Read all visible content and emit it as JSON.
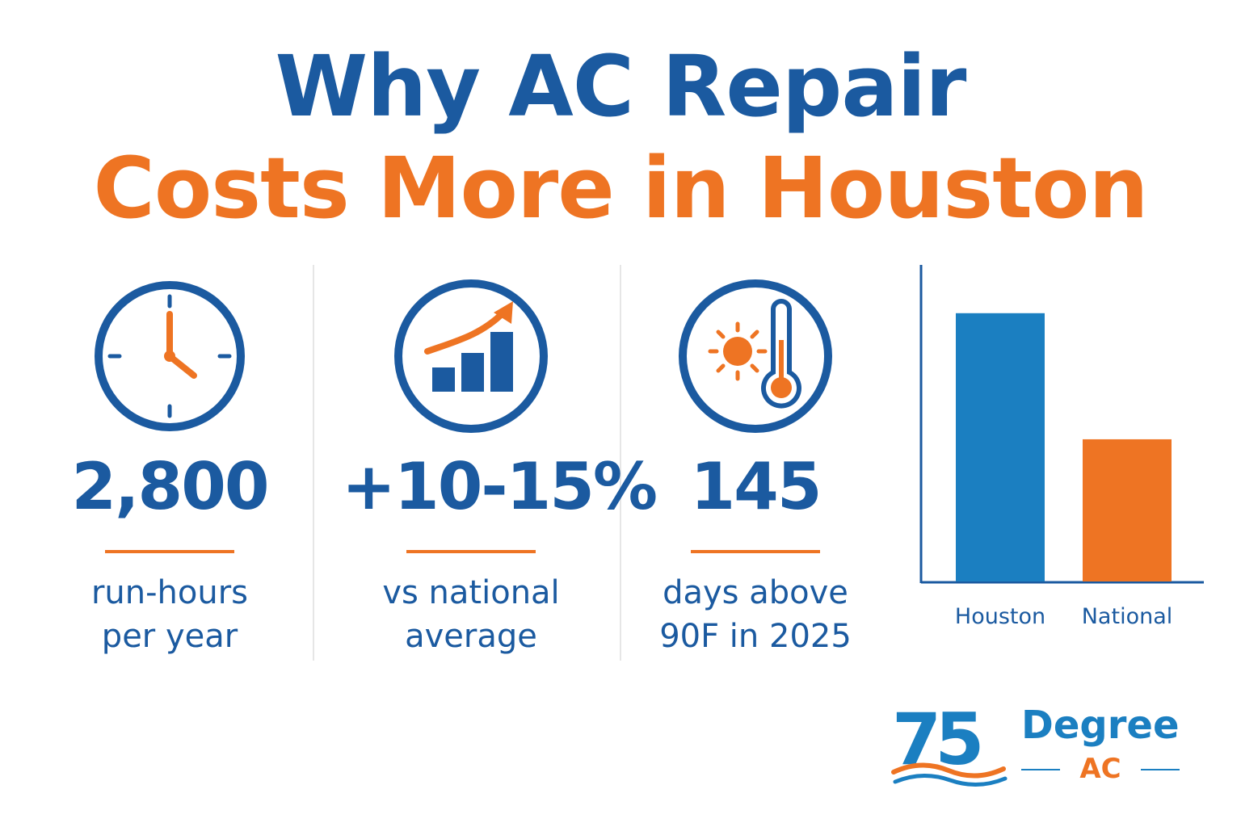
{
  "title": {
    "line1": "Why AC Repair",
    "line2": "Costs More in Houston"
  },
  "colors": {
    "blue": "#1b5aa0",
    "bar_blue": "#1b7fc1",
    "orange": "#ee7423"
  },
  "stats": [
    {
      "icon": "clock-icon",
      "value": "2,800",
      "label_line1": "run-hours",
      "label_line2": "per year"
    },
    {
      "icon": "growth-chart-icon",
      "value": "+10-15%",
      "label_line1": "vs national",
      "label_line2": "average"
    },
    {
      "icon": "sun-thermometer-icon",
      "value": "145",
      "label_line1": "days above",
      "label_line2": "90F in 2025"
    }
  ],
  "chart_data": {
    "type": "bar",
    "categories": [
      "Houston",
      "National"
    ],
    "values": [
      100,
      53
    ],
    "colors": [
      "#1b7fc1",
      "#ee7423"
    ],
    "title": "",
    "xlabel": "",
    "ylabel": "",
    "ylim": [
      0,
      118
    ],
    "grid": false,
    "tick_labels_y": false
  },
  "logo": {
    "number": "75",
    "word": "Degree",
    "sub": "AC"
  }
}
